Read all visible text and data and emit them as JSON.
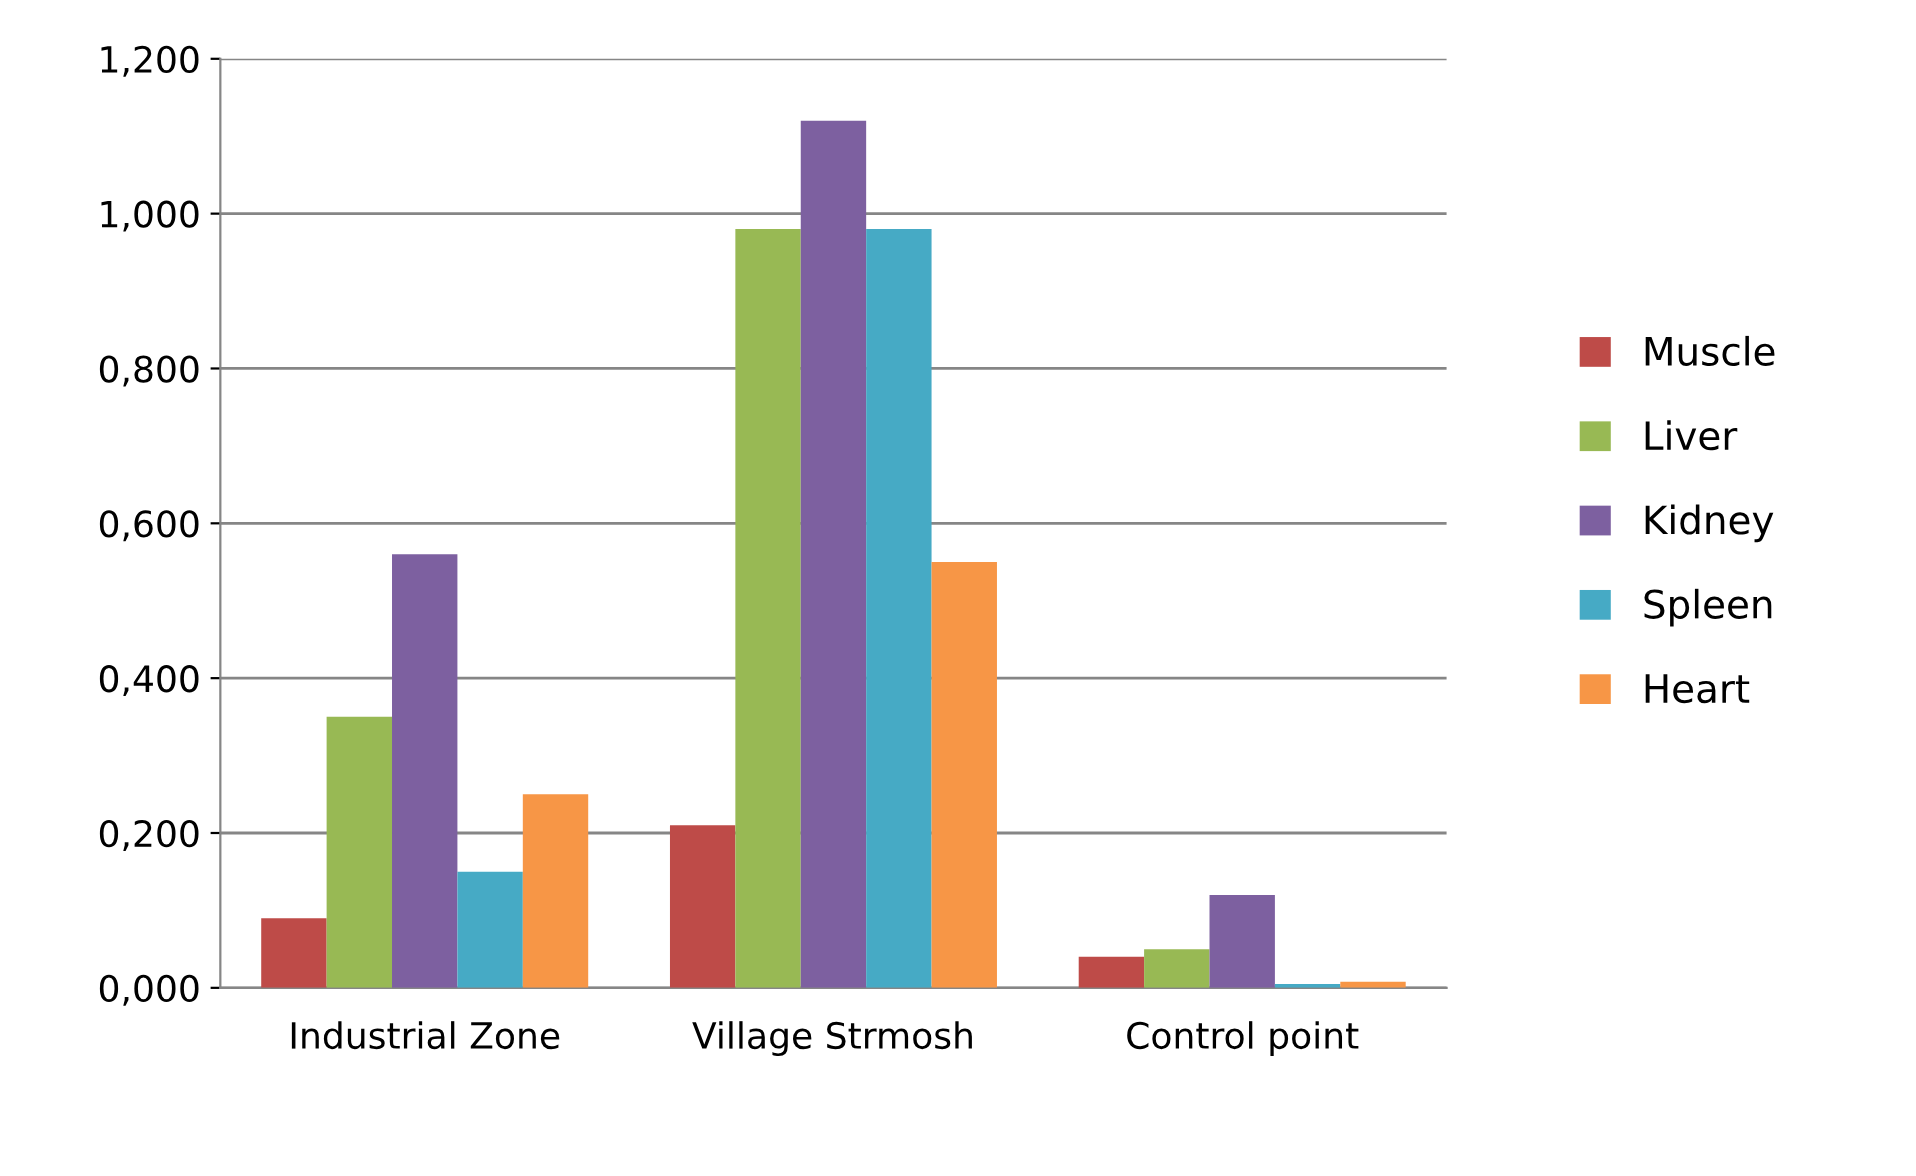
{
  "chart_data": {
    "type": "bar",
    "categories": [
      "Industrial Zone",
      "Village Strmosh",
      "Control point"
    ],
    "series": [
      {
        "name": "Muscle",
        "color": "#be4b48",
        "values": [
          0.09,
          0.21,
          0.04
        ]
      },
      {
        "name": "Liver",
        "color": "#98b954",
        "values": [
          0.35,
          0.98,
          0.05
        ]
      },
      {
        "name": "Kidney",
        "color": "#7d60a0",
        "values": [
          0.56,
          1.12,
          0.12
        ]
      },
      {
        "name": "Spleen",
        "color": "#46aac5",
        "values": [
          0.15,
          0.98,
          0.005
        ]
      },
      {
        "name": "Heart",
        "color": "#f79646",
        "values": [
          0.25,
          0.55,
          0.008
        ]
      }
    ],
    "ylim": [
      0,
      1.2
    ],
    "yticks": [
      {
        "value": 0,
        "label": "0,000"
      },
      {
        "value": 0.2,
        "label": "0,200"
      },
      {
        "value": 0.4,
        "label": "0,400"
      },
      {
        "value": 0.6,
        "label": "0,600"
      },
      {
        "value": 0.8,
        "label": "0,800"
      },
      {
        "value": 1.0,
        "label": "1,000"
      },
      {
        "value": 1.2,
        "label": "1,200"
      }
    ],
    "grid": "y",
    "legend": "right"
  }
}
